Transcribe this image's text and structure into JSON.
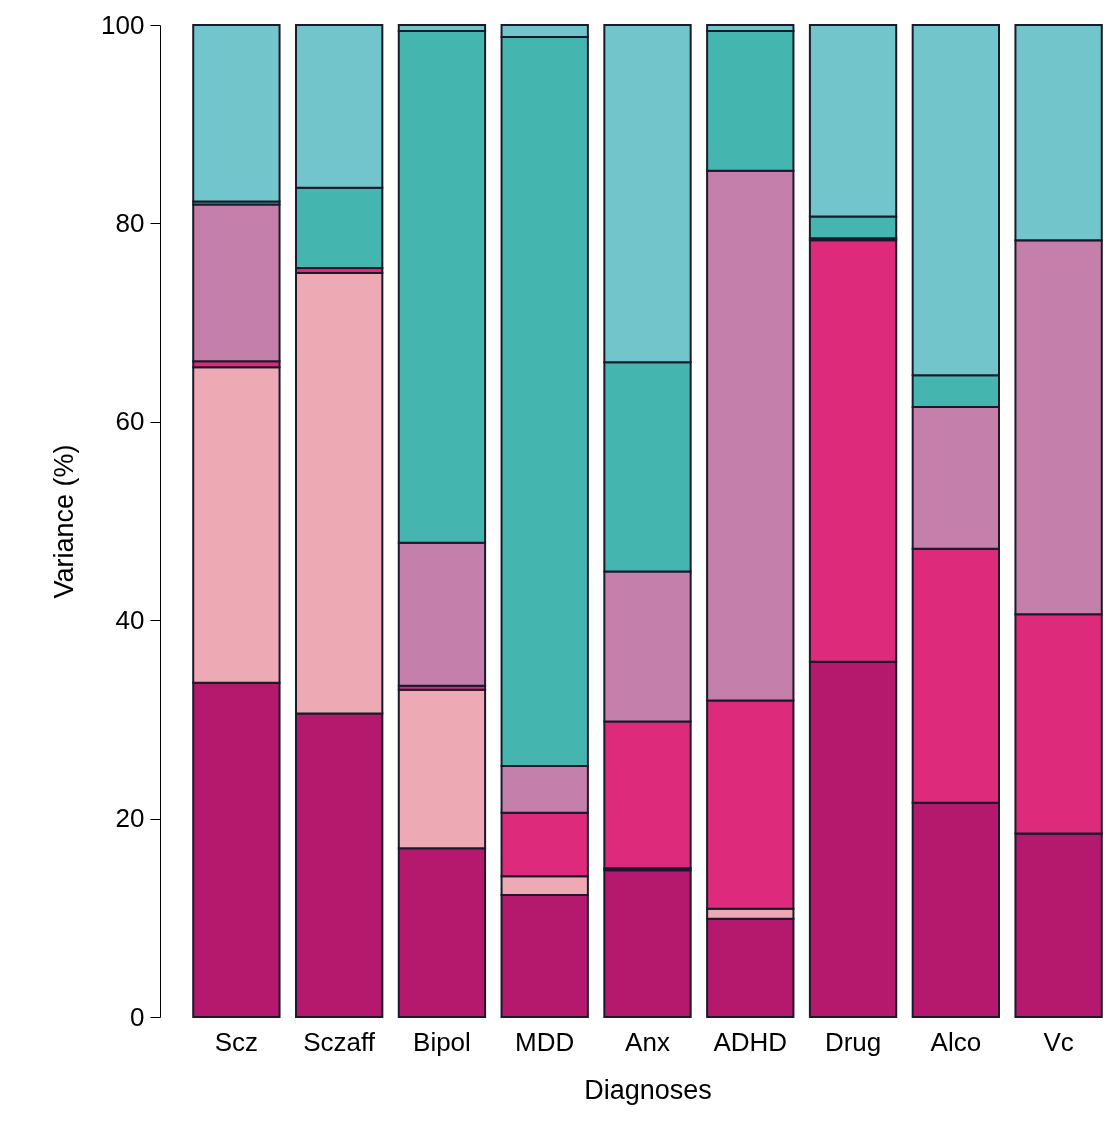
{
  "chart_data": {
    "type": "bar",
    "stacked": true,
    "xlabel": "Diagnoses",
    "ylabel": "Variance (%)",
    "categories": [
      "Scz",
      "Sczaff",
      "Bipol",
      "MDD",
      "Anx",
      "ADHD",
      "Drug",
      "Alco",
      "Vc"
    ],
    "ylim": [
      0,
      100
    ],
    "yticks": [
      0,
      20,
      40,
      60,
      80,
      100
    ],
    "grid": false,
    "legend": false,
    "series": [
      {
        "color": "#b5196e",
        "values": [
          33.7,
          30.6,
          17,
          12.3,
          14.8,
          9.9,
          35.8,
          21.6,
          18.5
        ]
      },
      {
        "color": "#eeaab4",
        "values": [
          31.8,
          44.4,
          16,
          1.9,
          0.2,
          1.0,
          0,
          0,
          0
        ]
      },
      {
        "color": "#dd2a7b",
        "values": [
          0.6,
          0.5,
          0.4,
          6.4,
          14.8,
          21.0,
          42.5,
          25.6,
          22.1
        ]
      },
      {
        "color": "#c47fab",
        "values": [
          15.8,
          0,
          14.4,
          4.7,
          15.1,
          53.4,
          0.2,
          14.3,
          37.7
        ]
      },
      {
        "color": "#45b5b0",
        "values": [
          0.3,
          8.1,
          51.6,
          73.5,
          21.1,
          14.1,
          2.2,
          3.2,
          0
        ]
      },
      {
        "color": "#72c6cb",
        "values": [
          17.8,
          16.4,
          0.6,
          1.2,
          34,
          0.6,
          19.3,
          35.3,
          21.7
        ]
      }
    ]
  }
}
